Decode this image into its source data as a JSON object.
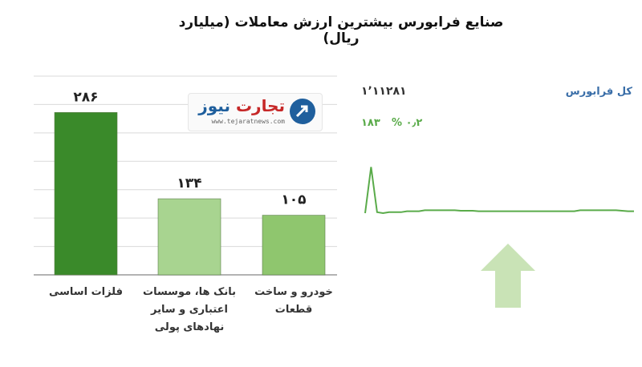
{
  "page": {
    "title": "صنایع فرابورس بیشترین ارزش معاملات  (میلیارد ریال)"
  },
  "logo": {
    "word1": "تجارت",
    "word2": "نیوز",
    "url": "www.tejaratnews.com"
  },
  "mini_panel": {
    "title": "کل فرابورس",
    "value": "۱٬۱۱۲۸۱",
    "change": "۱۸۳",
    "change_pct": "۰٫۲ %",
    "trend_direction": "up",
    "line_color": "#5aab4a",
    "arrow_color": "#c9e3b6"
  },
  "chart_data": [
    {
      "type": "bar",
      "categories": [
        "فلزات اساسی",
        "بانک ها، موسسات\nاعتباری و سایر\nنهادهای پولی",
        "خودرو و ساخت\nقطعات"
      ],
      "values": [
        286,
        134,
        105
      ],
      "value_labels": [
        "۲۸۶",
        "۱۳۴",
        "۱۰۵"
      ],
      "ylim": [
        0,
        350
      ],
      "grid": true,
      "colors": [
        "#3a8a2a",
        "#a8d490",
        "#8fc66e"
      ]
    },
    {
      "type": "line",
      "x": [
        0,
        1,
        2,
        3,
        4,
        5,
        6,
        7,
        8,
        9,
        10,
        11,
        12,
        13,
        14,
        15,
        16,
        17,
        18,
        19,
        20,
        21,
        22,
        23,
        24,
        25,
        26,
        27,
        28,
        29,
        30,
        31,
        32,
        33,
        34,
        35,
        36,
        37,
        38,
        39,
        40,
        41,
        42,
        43,
        44,
        45
      ],
      "y": [
        40,
        88,
        41,
        40,
        41,
        41,
        41,
        42,
        42,
        42,
        43,
        43,
        43,
        43,
        43,
        43,
        42.5,
        42.5,
        42.5,
        42,
        42,
        42,
        42,
        42,
        42,
        42,
        42,
        42,
        42,
        42,
        42,
        42,
        42,
        42,
        42,
        42,
        43,
        43,
        43,
        43,
        43,
        43,
        43,
        42.5,
        42,
        42
      ],
      "grid": false
    }
  ]
}
